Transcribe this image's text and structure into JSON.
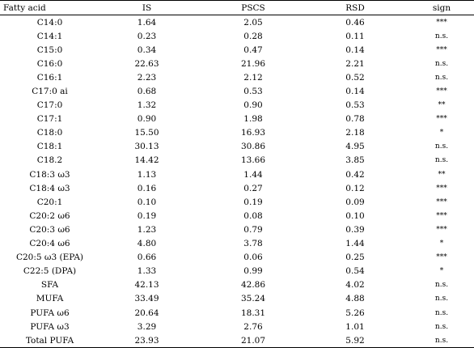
{
  "table": {
    "headers": [
      "Fatty acid",
      "IS",
      "PSCS",
      "RSD",
      "sign"
    ],
    "rows": [
      [
        "C14:0",
        "1.64",
        "2.05",
        "0.46",
        "***"
      ],
      [
        "C14:1",
        "0.23",
        "0.28",
        "0.11",
        "n.s."
      ],
      [
        "C15:0",
        "0.34",
        "0.47",
        "0.14",
        "***"
      ],
      [
        "C16:0",
        "22.63",
        "21.96",
        "2.21",
        "n.s."
      ],
      [
        "C16:1",
        "2.23",
        "2.12",
        "0.52",
        "n.s."
      ],
      [
        "C17:0 ai",
        "0.68",
        "0.53",
        "0.14",
        "***"
      ],
      [
        "C17:0",
        "1.32",
        "0.90",
        "0.53",
        "**"
      ],
      [
        "C17:1",
        "0.90",
        "1.98",
        "0.78",
        "***"
      ],
      [
        "C18:0",
        "15.50",
        "16.93",
        "2.18",
        "*"
      ],
      [
        "C18:1",
        "30.13",
        "30.86",
        "4.95",
        "n.s."
      ],
      [
        "C18.2",
        "14.42",
        "13.66",
        "3.85",
        "n.s."
      ],
      [
        "C18:3 ω3",
        "1.13",
        "1.44",
        "0.42",
        "**"
      ],
      [
        "C18:4 ω3",
        "0.16",
        "0.27",
        "0.12",
        "***"
      ],
      [
        "C20:1",
        "0.10",
        "0.19",
        "0.09",
        "***"
      ],
      [
        "C20:2 ω6",
        "0.19",
        "0.08",
        "0.10",
        "***"
      ],
      [
        "C20:3 ω6",
        "1.23",
        "0.79",
        "0.39",
        "***"
      ],
      [
        "C20:4 ω6",
        "4.80",
        "3.78",
        "1.44",
        "*"
      ],
      [
        "C20:5 ω3 (EPA)",
        "0.66",
        "0.06",
        "0.25",
        "***"
      ],
      [
        "C22:5 (DPA)",
        "1.33",
        "0.99",
        "0.54",
        "*"
      ],
      [
        "SFA",
        "42.13",
        "42.86",
        "4.02",
        "n.s."
      ],
      [
        "MUFA",
        "33.49",
        "35.24",
        "4.88",
        "n.s."
      ],
      [
        "PUFA ω6",
        "20.64",
        "18.31",
        "5.26",
        "n.s."
      ],
      [
        "PUFA ω3",
        "3.29",
        "2.76",
        "1.01",
        "n.s."
      ],
      [
        "Total PUFA",
        "23.93",
        "21.07",
        "5.92",
        "n.s."
      ]
    ]
  }
}
